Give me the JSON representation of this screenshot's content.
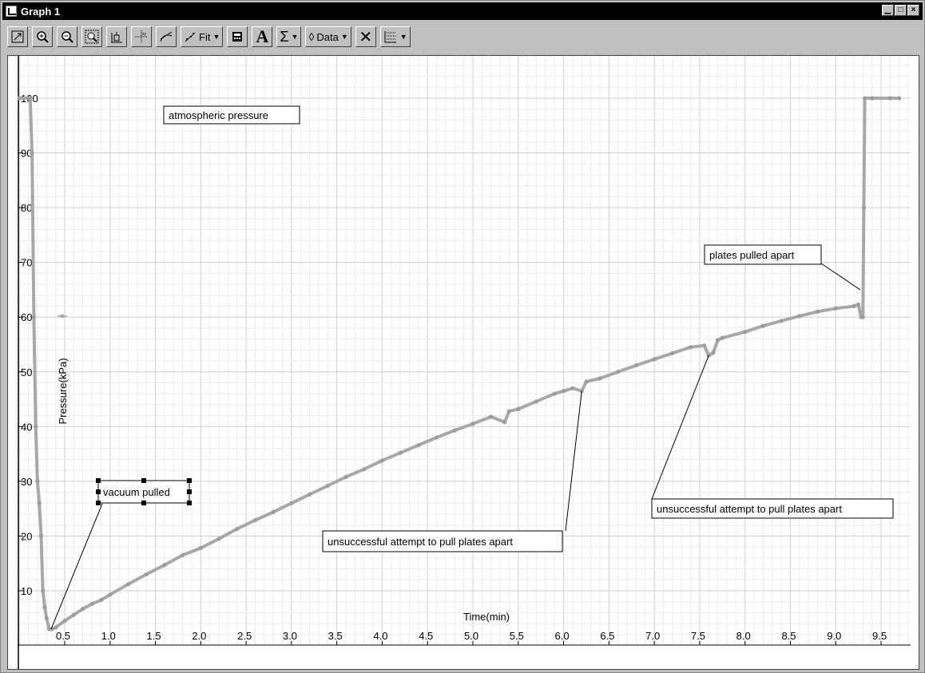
{
  "window": {
    "title": "Graph 1",
    "controls": [
      "minimize",
      "maximize",
      "close"
    ]
  },
  "toolbar": {
    "buttons": [
      {
        "name": "autoscale-button",
        "icon": "autoscale-icon"
      },
      {
        "name": "zoom-in-button",
        "icon": "zoom-in-icon"
      },
      {
        "name": "zoom-out-button",
        "icon": "zoom-out-icon"
      },
      {
        "name": "zoom-box-button",
        "icon": "zoom-box-icon"
      },
      {
        "name": "examine-button",
        "icon": "examine-icon"
      },
      {
        "name": "smart-tool-button",
        "icon": "crosshair-icon"
      },
      {
        "name": "tangent-button",
        "icon": "tangent-icon"
      }
    ],
    "fit_label": "Fit",
    "data_label": "Data",
    "sigma_label": "Σ",
    "text_label": "A"
  },
  "chart_data": {
    "type": "line",
    "title": "",
    "xlabel": "Time(min)",
    "ylabel": "Pressure(kPa)",
    "xlim": [
      0,
      10
    ],
    "ylim": [
      0,
      105
    ],
    "x_ticks": [
      0.5,
      1.0,
      1.5,
      2.0,
      2.5,
      3.0,
      3.5,
      4.0,
      4.5,
      5.0,
      5.5,
      6.0,
      6.5,
      7.0,
      7.5,
      8.0,
      8.5,
      9.0,
      9.5
    ],
    "x_tick_labels": [
      "0.5",
      "1.0",
      "1.5",
      "2.0",
      "2.5",
      "3.0",
      "3.5",
      "4.0",
      "4.5",
      "5.0",
      "5.5",
      "6.0",
      "6.5",
      "7.0",
      "7.5",
      "8.0",
      "8.5",
      "9.0",
      "9.5"
    ],
    "y_ticks": [
      10,
      20,
      30,
      40,
      50,
      60,
      70,
      80,
      90,
      100
    ],
    "y_tick_labels": [
      "10",
      "20",
      "30",
      "40",
      "50",
      "60",
      "70",
      "80",
      "90",
      "100"
    ],
    "grid": true,
    "series_color": "#a8a8a8",
    "series": [
      {
        "name": "",
        "x": [
          0.0,
          0.1,
          0.12,
          0.14,
          0.16,
          0.18,
          0.2,
          0.22,
          0.24,
          0.26,
          0.28,
          0.3,
          0.33,
          0.36,
          0.4,
          0.5,
          0.6,
          0.7,
          0.8,
          0.9,
          1.0,
          1.2,
          1.4,
          1.6,
          1.8,
          2.0,
          2.2,
          2.4,
          2.6,
          2.8,
          3.0,
          3.2,
          3.4,
          3.6,
          3.8,
          4.0,
          4.2,
          4.4,
          4.6,
          4.8,
          5.0,
          5.2,
          5.35,
          5.4,
          5.5,
          5.7,
          5.9,
          6.0,
          6.1,
          6.2,
          6.25,
          6.4,
          6.6,
          6.8,
          7.0,
          7.2,
          7.4,
          7.55,
          7.6,
          7.65,
          7.7,
          7.75,
          8.0,
          8.2,
          8.4,
          8.6,
          8.8,
          9.0,
          9.2,
          9.25,
          9.28,
          9.3,
          9.31,
          9.32,
          9.4,
          9.6,
          9.7
        ],
        "y": [
          100,
          100,
          100,
          90,
          60,
          40,
          30,
          26,
          20,
          10,
          7,
          5,
          3,
          3,
          3.3,
          4.5,
          5.6,
          6.7,
          7.6,
          8.3,
          9.3,
          11.2,
          13.0,
          14.7,
          16.5,
          17.8,
          19.5,
          21.3,
          22.9,
          24.4,
          26.0,
          27.6,
          29.2,
          30.8,
          32.2,
          33.8,
          35.2,
          36.6,
          38.0,
          39.3,
          40.5,
          41.8,
          40.8,
          42.8,
          43.2,
          44.6,
          46.0,
          46.5,
          47.0,
          46.5,
          48.2,
          48.8,
          50.0,
          51.2,
          52.3,
          53.4,
          54.5,
          54.8,
          53.0,
          53.5,
          55.8,
          56.2,
          57.3,
          58.4,
          59.3,
          60.2,
          61.0,
          61.6,
          62.0,
          62.3,
          60.0,
          60.0,
          80,
          100,
          100,
          100,
          100
        ]
      }
    ],
    "annotations": [
      {
        "text": "atmospheric pressure",
        "x": 0.4,
        "y": 100
      },
      {
        "text": "vacuum pulled",
        "x": 0.35,
        "y": 3
      },
      {
        "text": "unsuccessful attempt to pull plates apart",
        "x": 6.2,
        "y": 46.5
      },
      {
        "text": "unsuccessful attempt to pull plates apart",
        "x": 7.6,
        "y": 53.0
      },
      {
        "text": "plates pulled apart",
        "x": 9.27,
        "y": 65
      }
    ]
  }
}
